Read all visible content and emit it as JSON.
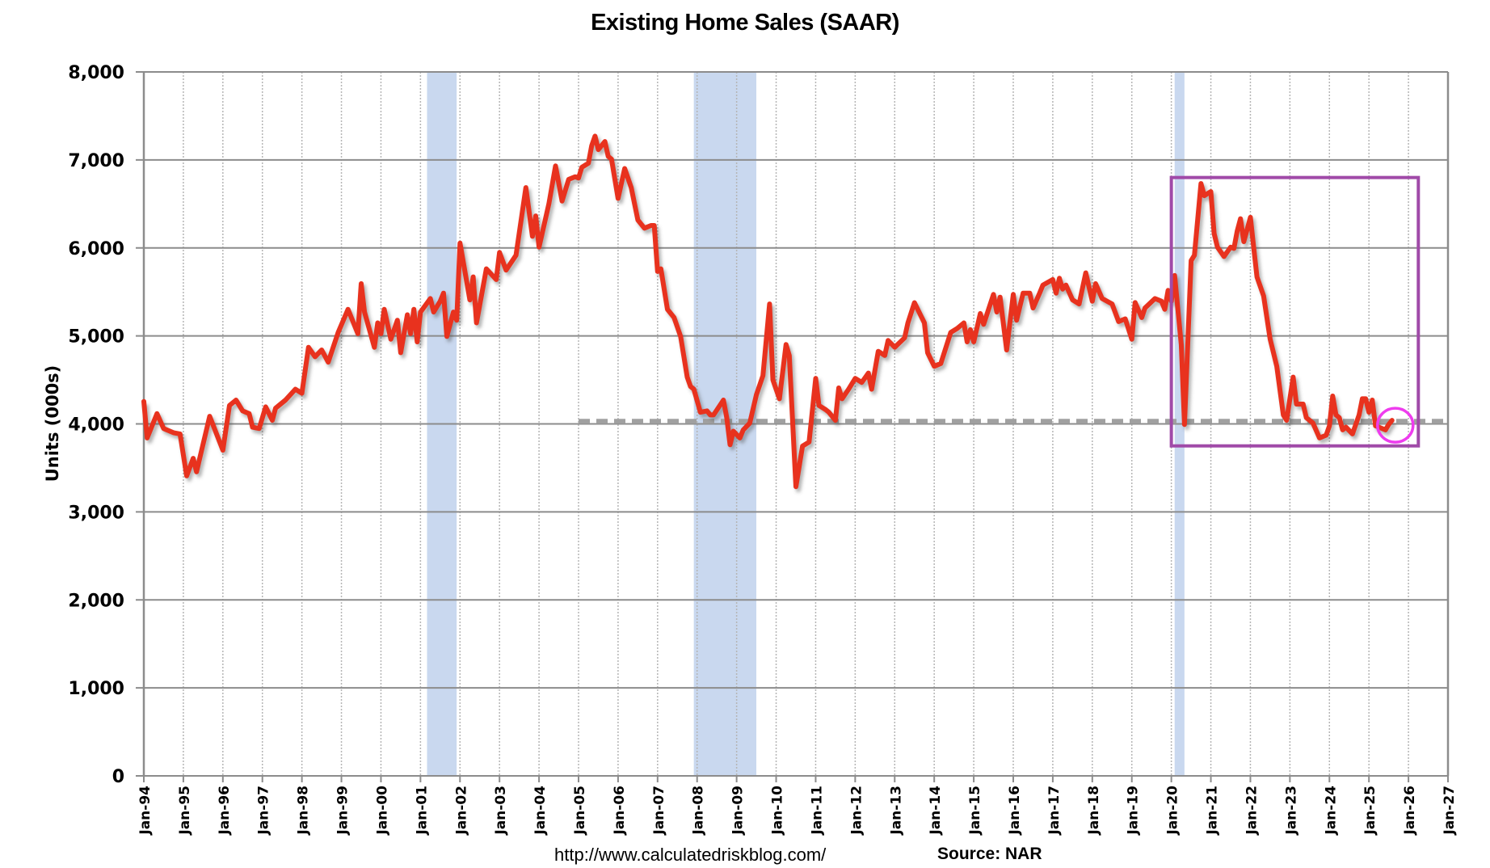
{
  "chart_data": {
    "type": "line",
    "title": "Existing Home Sales (SAAR)",
    "ylabel": "Units (000s)",
    "xlabel": "",
    "ylim": [
      0,
      8000
    ],
    "xlim": [
      "1994-01",
      "2027-01"
    ],
    "yticks": [
      "0",
      "1,000",
      "2,000",
      "3,000",
      "4,000",
      "5,000",
      "6,000",
      "7,000",
      "8,000"
    ],
    "ytick_values": [
      0,
      1000,
      2000,
      3000,
      4000,
      5000,
      6000,
      7000,
      8000
    ],
    "xticks": [
      "Jan-94",
      "Jan-95",
      "Jan-96",
      "Jan-97",
      "Jan-98",
      "Jan-99",
      "Jan-00",
      "Jan-01",
      "Jan-02",
      "Jan-03",
      "Jan-04",
      "Jan-05",
      "Jan-06",
      "Jan-07",
      "Jan-08",
      "Jan-09",
      "Jan-10",
      "Jan-11",
      "Jan-12",
      "Jan-13",
      "Jan-14",
      "Jan-15",
      "Jan-16",
      "Jan-17",
      "Jan-18",
      "Jan-19",
      "Jan-20",
      "Jan-21",
      "Jan-22",
      "Jan-23",
      "Jan-24",
      "Jan-25",
      "Jan-26",
      "Jan-27"
    ],
    "grid": {
      "horizontal": "solid",
      "vertical": "dotted"
    },
    "legend": "none",
    "colors": {
      "series": "#e8321e",
      "recession": "#c9d8ef",
      "box": "#a04aa8",
      "circle": "#ee3cee",
      "reference": "#a0a0a0",
      "grid": "#8c8c8c"
    },
    "recessions": [
      [
        "2001-03",
        "2001-11"
      ],
      [
        "2007-12",
        "2009-06"
      ],
      [
        "2020-02",
        "2020-04"
      ]
    ],
    "reference_line": {
      "value": 4030,
      "from": "2005-01",
      "to": "2027-01",
      "style": "dashed"
    },
    "highlight_box": {
      "from": "2020-01",
      "to": "2026-04",
      "ymin": 3750,
      "ymax": 6800
    },
    "highlight_circle": {
      "date": "2025-09",
      "value": 3985
    },
    "series": [
      {
        "points": [
          [
            "1994-01",
            4255
          ],
          [
            "1994-02",
            3840
          ],
          [
            "1994-05",
            4117
          ],
          [
            "1994-07",
            3948
          ],
          [
            "1994-10",
            3900
          ],
          [
            "1994-12",
            3886
          ],
          [
            "1995-02",
            3409
          ],
          [
            "1995-04",
            3609
          ],
          [
            "1995-05",
            3455
          ],
          [
            "1995-09",
            4086
          ],
          [
            "1996-01",
            3701
          ],
          [
            "1996-03",
            4209
          ],
          [
            "1996-05",
            4271
          ],
          [
            "1996-07",
            4148
          ],
          [
            "1996-09",
            4117
          ],
          [
            "1996-10",
            3963
          ],
          [
            "1996-12",
            3948
          ],
          [
            "1997-02",
            4194
          ],
          [
            "1997-04",
            4040
          ],
          [
            "1997-05",
            4178
          ],
          [
            "1997-08",
            4271
          ],
          [
            "1997-11",
            4394
          ],
          [
            "1998-01",
            4348
          ],
          [
            "1998-03",
            4871
          ],
          [
            "1998-05",
            4763
          ],
          [
            "1998-07",
            4840
          ],
          [
            "1998-09",
            4702
          ],
          [
            "1998-12",
            5040
          ],
          [
            "1999-03",
            5302
          ],
          [
            "1999-06",
            5025
          ],
          [
            "1999-07",
            5594
          ],
          [
            "1999-08",
            5271
          ],
          [
            "1999-11",
            4871
          ],
          [
            "1999-12",
            5148
          ],
          [
            "2000-01",
            5025
          ],
          [
            "2000-02",
            5302
          ],
          [
            "2000-04",
            4963
          ],
          [
            "2000-06",
            5178
          ],
          [
            "2000-07",
            4809
          ],
          [
            "2000-09",
            5240
          ],
          [
            "2000-10",
            5025
          ],
          [
            "2000-11",
            5302
          ],
          [
            "2000-12",
            4932
          ],
          [
            "2001-01",
            5271
          ],
          [
            "2001-04",
            5425
          ],
          [
            "2001-05",
            5271
          ],
          [
            "2001-07",
            5394
          ],
          [
            "2001-08",
            5486
          ],
          [
            "2001-09",
            4994
          ],
          [
            "2001-11",
            5271
          ],
          [
            "2001-12",
            5178
          ],
          [
            "2002-01",
            6055
          ],
          [
            "2002-04",
            5409
          ],
          [
            "2002-05",
            5671
          ],
          [
            "2002-06",
            5148
          ],
          [
            "2002-09",
            5763
          ],
          [
            "2002-12",
            5640
          ],
          [
            "2003-01",
            5948
          ],
          [
            "2003-03",
            5748
          ],
          [
            "2003-06",
            5917
          ],
          [
            "2003-09",
            6686
          ],
          [
            "2003-11",
            6132
          ],
          [
            "2003-12",
            6363
          ],
          [
            "2004-01",
            6009
          ],
          [
            "2004-04",
            6502
          ],
          [
            "2004-06",
            6932
          ],
          [
            "2004-08",
            6532
          ],
          [
            "2004-10",
            6779
          ],
          [
            "2004-12",
            6809
          ],
          [
            "2005-01",
            6794
          ],
          [
            "2005-02",
            6917
          ],
          [
            "2005-04",
            6963
          ],
          [
            "2005-05",
            7163
          ],
          [
            "2005-06",
            7271
          ],
          [
            "2005-07",
            7117
          ],
          [
            "2005-09",
            7209
          ],
          [
            "2005-10",
            7040
          ],
          [
            "2005-11",
            7009
          ],
          [
            "2006-01",
            6563
          ],
          [
            "2006-03",
            6902
          ],
          [
            "2006-05",
            6686
          ],
          [
            "2006-07",
            6317
          ],
          [
            "2006-09",
            6225
          ],
          [
            "2006-11",
            6255
          ],
          [
            "2006-12",
            6255
          ],
          [
            "2007-01",
            5732
          ],
          [
            "2007-02",
            5763
          ],
          [
            "2007-04",
            5302
          ],
          [
            "2007-06",
            5209
          ],
          [
            "2007-08",
            4994
          ],
          [
            "2007-10",
            4532
          ],
          [
            "2007-11",
            4425
          ],
          [
            "2007-12",
            4394
          ],
          [
            "2008-02",
            4132
          ],
          [
            "2008-04",
            4148
          ],
          [
            "2008-05",
            4102
          ],
          [
            "2008-06",
            4102
          ],
          [
            "2008-09",
            4271
          ],
          [
            "2008-10",
            4071
          ],
          [
            "2008-11",
            3763
          ],
          [
            "2008-12",
            3917
          ],
          [
            "2009-02",
            3840
          ],
          [
            "2009-03",
            3932
          ],
          [
            "2009-05",
            4009
          ],
          [
            "2009-07",
            4332
          ],
          [
            "2009-09",
            4548
          ],
          [
            "2009-11",
            5363
          ],
          [
            "2009-12",
            4501
          ],
          [
            "2010-02",
            4286
          ],
          [
            "2010-04",
            4902
          ],
          [
            "2010-05",
            4778
          ],
          [
            "2010-07",
            3286
          ],
          [
            "2010-09",
            3748
          ],
          [
            "2010-11",
            3794
          ],
          [
            "2011-01",
            4517
          ],
          [
            "2011-02",
            4209
          ],
          [
            "2011-04",
            4163
          ],
          [
            "2011-05",
            4132
          ],
          [
            "2011-07",
            4040
          ],
          [
            "2011-08",
            4409
          ],
          [
            "2011-09",
            4286
          ],
          [
            "2011-11",
            4394
          ],
          [
            "2012-01",
            4517
          ],
          [
            "2012-03",
            4471
          ],
          [
            "2012-05",
            4578
          ],
          [
            "2012-06",
            4394
          ],
          [
            "2012-08",
            4825
          ],
          [
            "2012-10",
            4778
          ],
          [
            "2012-11",
            4948
          ],
          [
            "2013-01",
            4871
          ],
          [
            "2013-04",
            4978
          ],
          [
            "2013-05",
            5148
          ],
          [
            "2013-07",
            5378
          ],
          [
            "2013-10",
            5148
          ],
          [
            "2013-11",
            4809
          ],
          [
            "2014-01",
            4655
          ],
          [
            "2014-03",
            4686
          ],
          [
            "2014-06",
            5040
          ],
          [
            "2014-08",
            5086
          ],
          [
            "2014-10",
            5148
          ],
          [
            "2014-11",
            4932
          ],
          [
            "2014-12",
            5071
          ],
          [
            "2015-01",
            4932
          ],
          [
            "2015-03",
            5255
          ],
          [
            "2015-04",
            5132
          ],
          [
            "2015-07",
            5471
          ],
          [
            "2015-08",
            5271
          ],
          [
            "2015-09",
            5440
          ],
          [
            "2015-11",
            4840
          ],
          [
            "2016-01",
            5471
          ],
          [
            "2016-02",
            5178
          ],
          [
            "2016-04",
            5486
          ],
          [
            "2016-06",
            5486
          ],
          [
            "2016-07",
            5317
          ],
          [
            "2016-09",
            5486
          ],
          [
            "2016-10",
            5578
          ],
          [
            "2017-01",
            5640
          ],
          [
            "2017-02",
            5486
          ],
          [
            "2017-03",
            5655
          ],
          [
            "2017-04",
            5532
          ],
          [
            "2017-05",
            5578
          ],
          [
            "2017-07",
            5409
          ],
          [
            "2017-09",
            5363
          ],
          [
            "2017-11",
            5717
          ],
          [
            "2018-01",
            5394
          ],
          [
            "2018-02",
            5594
          ],
          [
            "2018-04",
            5425
          ],
          [
            "2018-07",
            5363
          ],
          [
            "2018-09",
            5163
          ],
          [
            "2018-11",
            5194
          ],
          [
            "2019-01",
            4963
          ],
          [
            "2019-02",
            5379
          ],
          [
            "2019-04",
            5209
          ],
          [
            "2019-05",
            5317
          ],
          [
            "2019-08",
            5425
          ],
          [
            "2019-10",
            5394
          ],
          [
            "2019-11",
            5302
          ],
          [
            "2019-12",
            5517
          ],
          [
            "2020-01",
            5394
          ],
          [
            "2020-02",
            5686
          ],
          [
            "2020-04",
            4901
          ],
          [
            "2020-05",
            3994
          ],
          [
            "2020-07",
            5855
          ],
          [
            "2020-08",
            5917
          ],
          [
            "2020-10",
            6732
          ],
          [
            "2020-11",
            6594
          ],
          [
            "2021-01",
            6640
          ],
          [
            "2021-02",
            6163
          ],
          [
            "2021-03",
            6009
          ],
          [
            "2021-05",
            5902
          ],
          [
            "2021-07",
            6009
          ],
          [
            "2021-08",
            5994
          ],
          [
            "2021-09",
            6194
          ],
          [
            "2021-10",
            6332
          ],
          [
            "2021-11",
            6071
          ],
          [
            "2022-01",
            6348
          ],
          [
            "2022-02",
            6009
          ],
          [
            "2022-03",
            5671
          ],
          [
            "2022-05",
            5455
          ],
          [
            "2022-07",
            4963
          ],
          [
            "2022-08",
            4809
          ],
          [
            "2022-09",
            4655
          ],
          [
            "2022-11",
            4102
          ],
          [
            "2022-12",
            4040
          ],
          [
            "2023-02",
            4532
          ],
          [
            "2023-03",
            4225
          ],
          [
            "2023-05",
            4225
          ],
          [
            "2023-06",
            4071
          ],
          [
            "2023-08",
            4009
          ],
          [
            "2023-10",
            3840
          ],
          [
            "2023-12",
            3871
          ],
          [
            "2024-01",
            3978
          ],
          [
            "2024-02",
            4317
          ],
          [
            "2024-03",
            4102
          ],
          [
            "2024-04",
            4071
          ],
          [
            "2024-05",
            3932
          ],
          [
            "2024-06",
            3963
          ],
          [
            "2024-08",
            3886
          ],
          [
            "2024-10",
            4102
          ],
          [
            "2024-11",
            4286
          ],
          [
            "2024-12",
            4286
          ],
          [
            "2025-01",
            4132
          ],
          [
            "2025-02",
            4271
          ],
          [
            "2025-03",
            3978
          ],
          [
            "2025-06",
            3932
          ],
          [
            "2025-07",
            3994
          ],
          [
            "2025-08",
            4040
          ]
        ]
      }
    ]
  },
  "footer": {
    "url": "http://www.calculatedriskblog.com/",
    "source": "Source: NAR"
  }
}
